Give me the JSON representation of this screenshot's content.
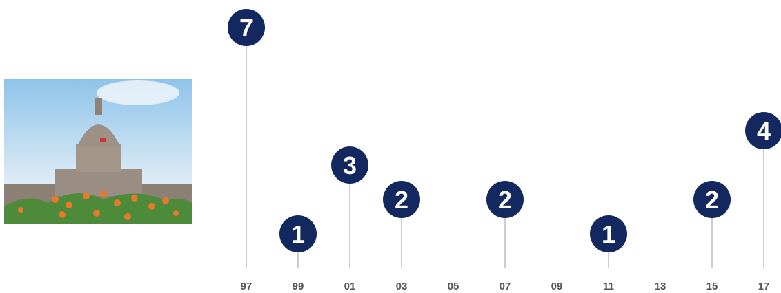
{
  "chart_data": {
    "type": "lollipop",
    "categories": [
      "97",
      "99",
      "01",
      "03",
      "05",
      "07",
      "09",
      "11",
      "13",
      "15",
      "17"
    ],
    "values": [
      7,
      1,
      3,
      2,
      null,
      2,
      null,
      1,
      null,
      2,
      4
    ],
    "color": "#13285f",
    "ylim": [
      0,
      7
    ]
  }
}
